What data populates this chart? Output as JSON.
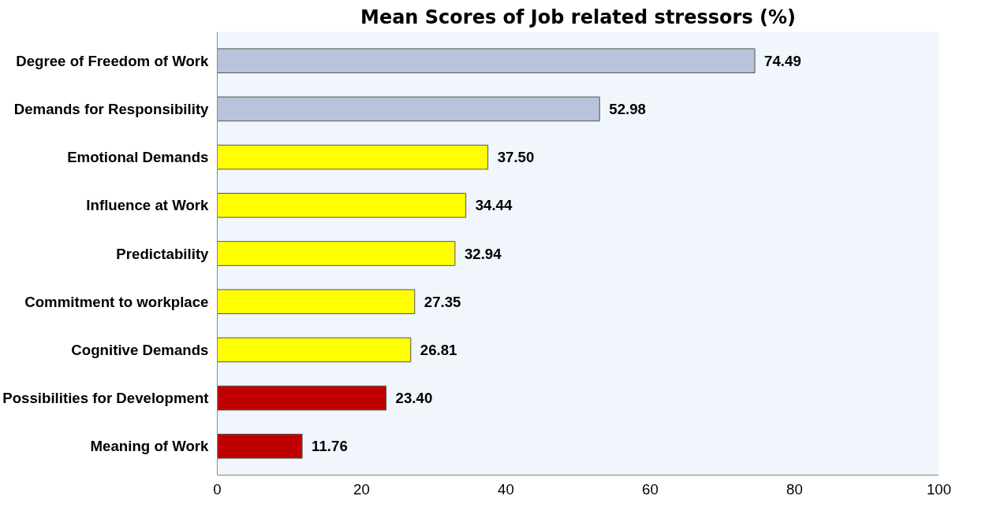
{
  "chart_data": {
    "type": "bar",
    "orientation": "horizontal",
    "title": "Mean Scores of Job related stressors (%)",
    "categories": [
      "Degree of Freedom of Work",
      "Demands for Responsibility",
      "Emotional Demands",
      "Influence at Work",
      "Predictability",
      "Commitment to workplace",
      "Cognitive Demands",
      "Possibilities for Development",
      "Meaning of Work"
    ],
    "values": [
      74.49,
      52.98,
      37.5,
      34.44,
      32.94,
      27.35,
      26.81,
      23.4,
      11.76
    ],
    "colors": [
      "#b8c4dc",
      "#b8c4dc",
      "#ffff00",
      "#ffff00",
      "#ffff00",
      "#ffff00",
      "#ffff00",
      "#c00000",
      "#c00000"
    ],
    "value_labels": [
      "74.49",
      "52.98",
      "37.50",
      "34.44",
      "32.94",
      "27.35",
      "26.81",
      "23.40",
      "11.76"
    ],
    "xlim": [
      0,
      100
    ],
    "xticks": [
      0,
      20,
      40,
      60,
      80,
      100
    ],
    "grid": false
  }
}
